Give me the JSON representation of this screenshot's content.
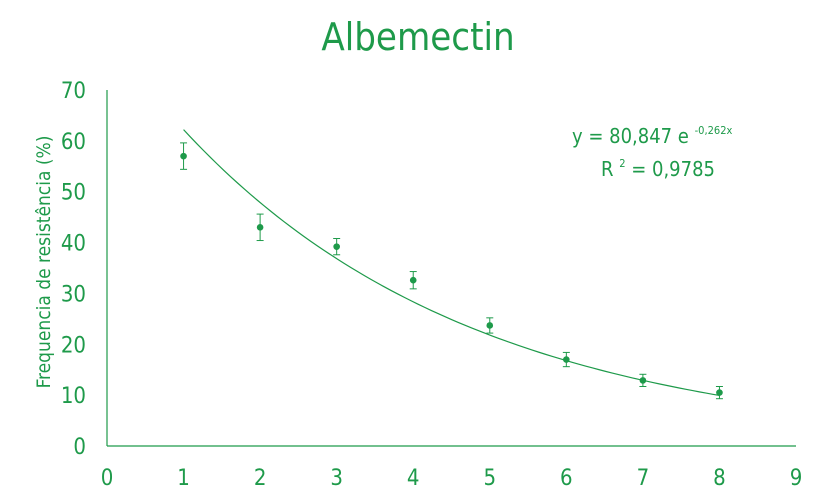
{
  "chart_data": {
    "type": "scatter",
    "title": "Albemectin",
    "xlabel": "",
    "ylabel": "Frequencia de resistência (%)",
    "xlim": [
      0,
      9
    ],
    "ylim": [
      0,
      70
    ],
    "x_ticks": [
      "0",
      "1",
      "2",
      "3",
      "4",
      "5",
      "6",
      "7",
      "8",
      "9"
    ],
    "y_ticks": [
      "0",
      "10",
      "20",
      "30",
      "40",
      "50",
      "60",
      "70"
    ],
    "grid": false,
    "series": [
      {
        "x": [
          1,
          2,
          3,
          4,
          5,
          6,
          7,
          8
        ],
        "y": [
          57,
          43,
          39.2,
          32.6,
          23.7,
          17,
          12.9,
          10.5
        ],
        "err": [
          2.6,
          2.6,
          1.6,
          1.7,
          1.5,
          1.4,
          1.2,
          1.2
        ]
      }
    ],
    "trendline": {
      "type": "exponential",
      "a": 80.847,
      "b": -0.262,
      "x_range": [
        1,
        8
      ],
      "equation": "y = 80,847 e",
      "exponent": "-0,262x",
      "r2_label": "R",
      "r2_sup": "2",
      "r2_value": " = 0,9785"
    },
    "colors": {
      "primary": "#1e9a4a",
      "axis": "#1e9a4a"
    }
  }
}
